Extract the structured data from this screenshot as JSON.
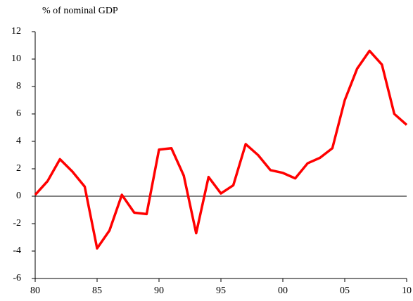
{
  "chart_data": {
    "type": "line",
    "title": "% of nominal GDP",
    "x": [
      1980,
      1981,
      1982,
      1983,
      1984,
      1985,
      1986,
      1987,
      1988,
      1989,
      1990,
      1991,
      1992,
      1993,
      1994,
      1995,
      1996,
      1997,
      1998,
      1999,
      2000,
      2001,
      2002,
      2003,
      2004,
      2005,
      2006,
      2007,
      2008,
      2009,
      2010
    ],
    "series": [
      {
        "color": "#ff0000",
        "values": [
          0.1,
          1.1,
          2.7,
          1.8,
          0.7,
          -3.8,
          -2.5,
          0.1,
          -1.2,
          -1.3,
          3.4,
          3.5,
          1.5,
          -2.7,
          1.4,
          0.2,
          0.8,
          3.8,
          3.0,
          1.9,
          1.7,
          1.3,
          2.4,
          2.8,
          3.5,
          7.0,
          9.3,
          10.6,
          9.6,
          6.0,
          5.2
        ]
      }
    ],
    "xlim": [
      1980,
      2010
    ],
    "xticks": [
      {
        "value": 1980,
        "label": "80"
      },
      {
        "value": 1985,
        "label": "85"
      },
      {
        "value": 1990,
        "label": "90"
      },
      {
        "value": 1995,
        "label": "95"
      },
      {
        "value": 2000,
        "label": "00"
      },
      {
        "value": 2005,
        "label": "05"
      },
      {
        "value": 2010,
        "label": "10"
      }
    ],
    "ylim": [
      -6,
      12
    ],
    "yticks": [
      -6,
      -4,
      -2,
      0,
      2,
      4,
      6,
      8,
      10,
      12
    ]
  }
}
